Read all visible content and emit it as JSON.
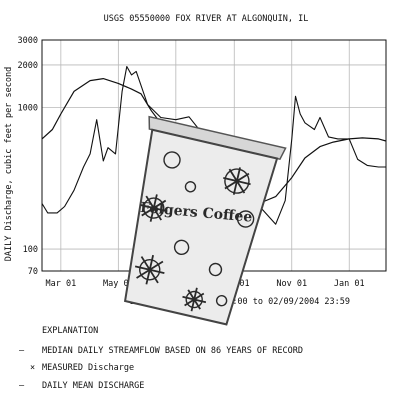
{
  "chart_data": {
    "type": "line",
    "title": "USGS 05550000 FOX RIVER AT ALGONQUIN, IL",
    "ylabel": "DAILY Discharge, cubic feet per second",
    "y_scale": "log",
    "ylim": [
      70,
      3000
    ],
    "y_ticks": [
      70,
      100,
      1000,
      2000,
      3000
    ],
    "y_tick_labels": [
      "70",
      "100",
      "1000",
      "2000",
      "3000"
    ],
    "xlim": [
      "2003-02-09",
      "2004-02-09"
    ],
    "x_ticks": [
      "2003-03-01",
      "2003-05-01",
      "2003-07-01",
      "2003-09-01",
      "2003-11-01",
      "2004-01-01"
    ],
    "x_tick_labels": [
      "Mar 01",
      "May 01",
      "Jul 01",
      "Sep 01",
      "Nov 01",
      "Jan 01"
    ],
    "grid": true,
    "dates_caption": "DATES: 02/09/2003 00:00 to 02/09/2004 23:59",
    "series": [
      {
        "name": "MEDIAN DAILY STREAMFLOW BASED ON 86 YEARS OF RECORD",
        "style": "solid",
        "x": [
          "2003-02-09",
          "2003-02-20",
          "2003-03-01",
          "2003-03-15",
          "2003-04-01",
          "2003-04-15",
          "2003-05-01",
          "2003-05-15",
          "2003-05-25",
          "2003-06-05",
          "2003-06-20",
          "2003-07-01",
          "2003-07-15",
          "2003-08-01",
          "2003-08-15",
          "2003-09-01",
          "2003-09-15",
          "2003-10-01",
          "2003-10-15",
          "2003-11-01",
          "2003-11-15",
          "2003-12-01",
          "2003-12-15",
          "2004-01-01",
          "2004-01-15",
          "2004-02-01",
          "2004-02-09"
        ],
        "y": [
          600,
          700,
          900,
          1300,
          1550,
          1600,
          1480,
          1350,
          1250,
          950,
          700,
          580,
          430,
          330,
          240,
          210,
          205,
          215,
          235,
          320,
          440,
          530,
          570,
          600,
          610,
          600,
          580
        ]
      },
      {
        "name": "DAILY MEAN DISCHARGE",
        "style": "jagged",
        "x": [
          "2003-02-09",
          "2003-02-15",
          "2003-02-25",
          "2003-03-05",
          "2003-03-15",
          "2003-03-25",
          "2003-04-01",
          "2003-04-08",
          "2003-04-15",
          "2003-04-20",
          "2003-04-28",
          "2003-05-05",
          "2003-05-10",
          "2003-05-15",
          "2003-05-20",
          "2003-06-01",
          "2003-06-15",
          "2003-07-01",
          "2003-07-15",
          "2003-08-01",
          "2003-08-15",
          "2003-09-01",
          "2003-09-15",
          "2003-10-01",
          "2003-10-15",
          "2003-10-25",
          "2003-11-01",
          "2003-11-05",
          "2003-11-10",
          "2003-11-15",
          "2003-11-25",
          "2003-12-01",
          "2003-12-10",
          "2003-12-20",
          "2004-01-01",
          "2004-01-10",
          "2004-01-20",
          "2004-02-01",
          "2004-02-09"
        ],
        "y": [
          210,
          180,
          180,
          200,
          260,
          380,
          470,
          820,
          420,
          520,
          470,
          1300,
          1950,
          1700,
          1800,
          1050,
          850,
          820,
          860,
          620,
          420,
          300,
          250,
          190,
          150,
          220,
          600,
          1200,
          900,
          780,
          700,
          850,
          620,
          600,
          600,
          430,
          390,
          380,
          380
        ]
      }
    ],
    "legend_title": "EXPLANATION",
    "legend": [
      {
        "symbol": "—",
        "label": "MEDIAN DAILY STREAMFLOW BASED ON 86 YEARS OF RECORD"
      },
      {
        "symbol": "×",
        "label": "MEASURED Discharge"
      },
      {
        "symbol": "—",
        "label": "DAILY MEAN DISCHARGE"
      }
    ]
  },
  "overlay": {
    "text": "Folgers Coffee",
    "colors": {
      "cup_fill": "#ececec",
      "cup_pattern": "#2a2a2a",
      "lid": "#d6d6d6"
    }
  },
  "colors": {
    "background": "#ffffff",
    "line": "#111111",
    "grid": "#b8b8b8",
    "axis": "#111111"
  }
}
